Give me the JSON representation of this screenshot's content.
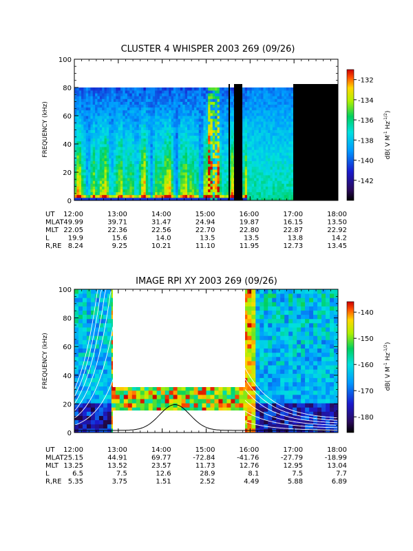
{
  "chart_data": [
    {
      "type": "heatmap",
      "title": "CLUSTER 4 WHISPER 2003 269 (09/26)",
      "ylabel": "FREQUENCY (kHz)",
      "ylim": [
        0,
        100
      ],
      "y_ticks": [
        "0",
        "20",
        "40",
        "60",
        "80",
        "100"
      ],
      "colorbar": {
        "label": "dB( V M",
        "label_exp1": "-1",
        "label_mid": " Hz",
        "label_exp2": "-1/2",
        "label_end": ")",
        "range": [
          -144,
          -131
        ],
        "ticks": [
          "-132",
          "-134",
          "-136",
          "-138",
          "-140",
          "-142"
        ],
        "tick_values": [
          -132,
          -134,
          -136,
          -138,
          -140,
          -142
        ]
      },
      "x_ticks": [
        "12:00",
        "13:00",
        "14:00",
        "15:00",
        "16:00",
        "17:00",
        "18:00"
      ],
      "ephemeris": [
        {
          "label": "UT",
          "values": [
            "12:00",
            "13:00",
            "14:00",
            "15:00",
            "16:00",
            "17:00",
            "18:00"
          ]
        },
        {
          "label": "MLAT",
          "values": [
            "49.99",
            "39.71",
            "31.47",
            "24.94",
            "19.87",
            "16.15",
            "13.50"
          ]
        },
        {
          "label": "MLT",
          "values": [
            "22.05",
            "22.36",
            "22.56",
            "22.70",
            "22.80",
            "22.87",
            "22.92"
          ]
        },
        {
          "label": "L",
          "values": [
            "19.9",
            "15.6",
            "14.0",
            "13.5",
            "13.5",
            "13.8",
            "14.2"
          ]
        },
        {
          "label": "R,RE",
          "values": [
            "8.24",
            "9.25",
            "10.21",
            "11.10",
            "11.95",
            "12.73",
            "13.45"
          ]
        }
      ],
      "data_coverage": {
        "freq_max_khz": 80,
        "data_end_ut": "17:00",
        "gap_ut": [
          "15:30",
          "15:45"
        ]
      }
    },
    {
      "type": "heatmap",
      "title": "IMAGE RPI XY 2003 269 (09/26)",
      "ylabel": "FREQUENCY (kHz)",
      "ylim": [
        0,
        100
      ],
      "y_ticks": [
        "0",
        "20",
        "40",
        "60",
        "80",
        "100"
      ],
      "colorbar": {
        "label": "dB( V M",
        "label_exp1": "-1",
        "label_mid": " Hz",
        "label_exp2": "-1/2",
        "label_end": ")",
        "range": [
          -186,
          -136
        ],
        "ticks": [
          "-140",
          "-150",
          "-160",
          "-170",
          "-180"
        ],
        "tick_values": [
          -140,
          -150,
          -160,
          -170,
          -180
        ]
      },
      "x_ticks": [
        "12:00",
        "13:00",
        "14:00",
        "15:00",
        "16:00",
        "17:00",
        "18:00"
      ],
      "ephemeris": [
        {
          "label": "UT",
          "values": [
            "12:00",
            "13:00",
            "14:00",
            "15:00",
            "16:00",
            "17:00",
            "18:00"
          ]
        },
        {
          "label": "MLAT",
          "values": [
            "25.15",
            "44.91",
            "69.77",
            "-72.84",
            "-41.76",
            "-27.79",
            "-18.99"
          ]
        },
        {
          "label": "MLT",
          "values": [
            "13.25",
            "13.52",
            "23.57",
            "11.73",
            "12.76",
            "12.95",
            "13.04"
          ]
        },
        {
          "label": "L",
          "values": [
            "6.5",
            "7.5",
            "12.6",
            "28.9",
            "8.1",
            "7.5",
            "7.7"
          ]
        },
        {
          "label": "R,RE",
          "values": [
            "5.35",
            "3.75",
            "1.51",
            "2.52",
            "4.49",
            "5.88",
            "6.89"
          ]
        }
      ],
      "data_coverage": {
        "gap_ut": [
          "12:50",
          "15:48"
        ],
        "gap_band_khz": [
          5,
          33
        ]
      }
    }
  ]
}
